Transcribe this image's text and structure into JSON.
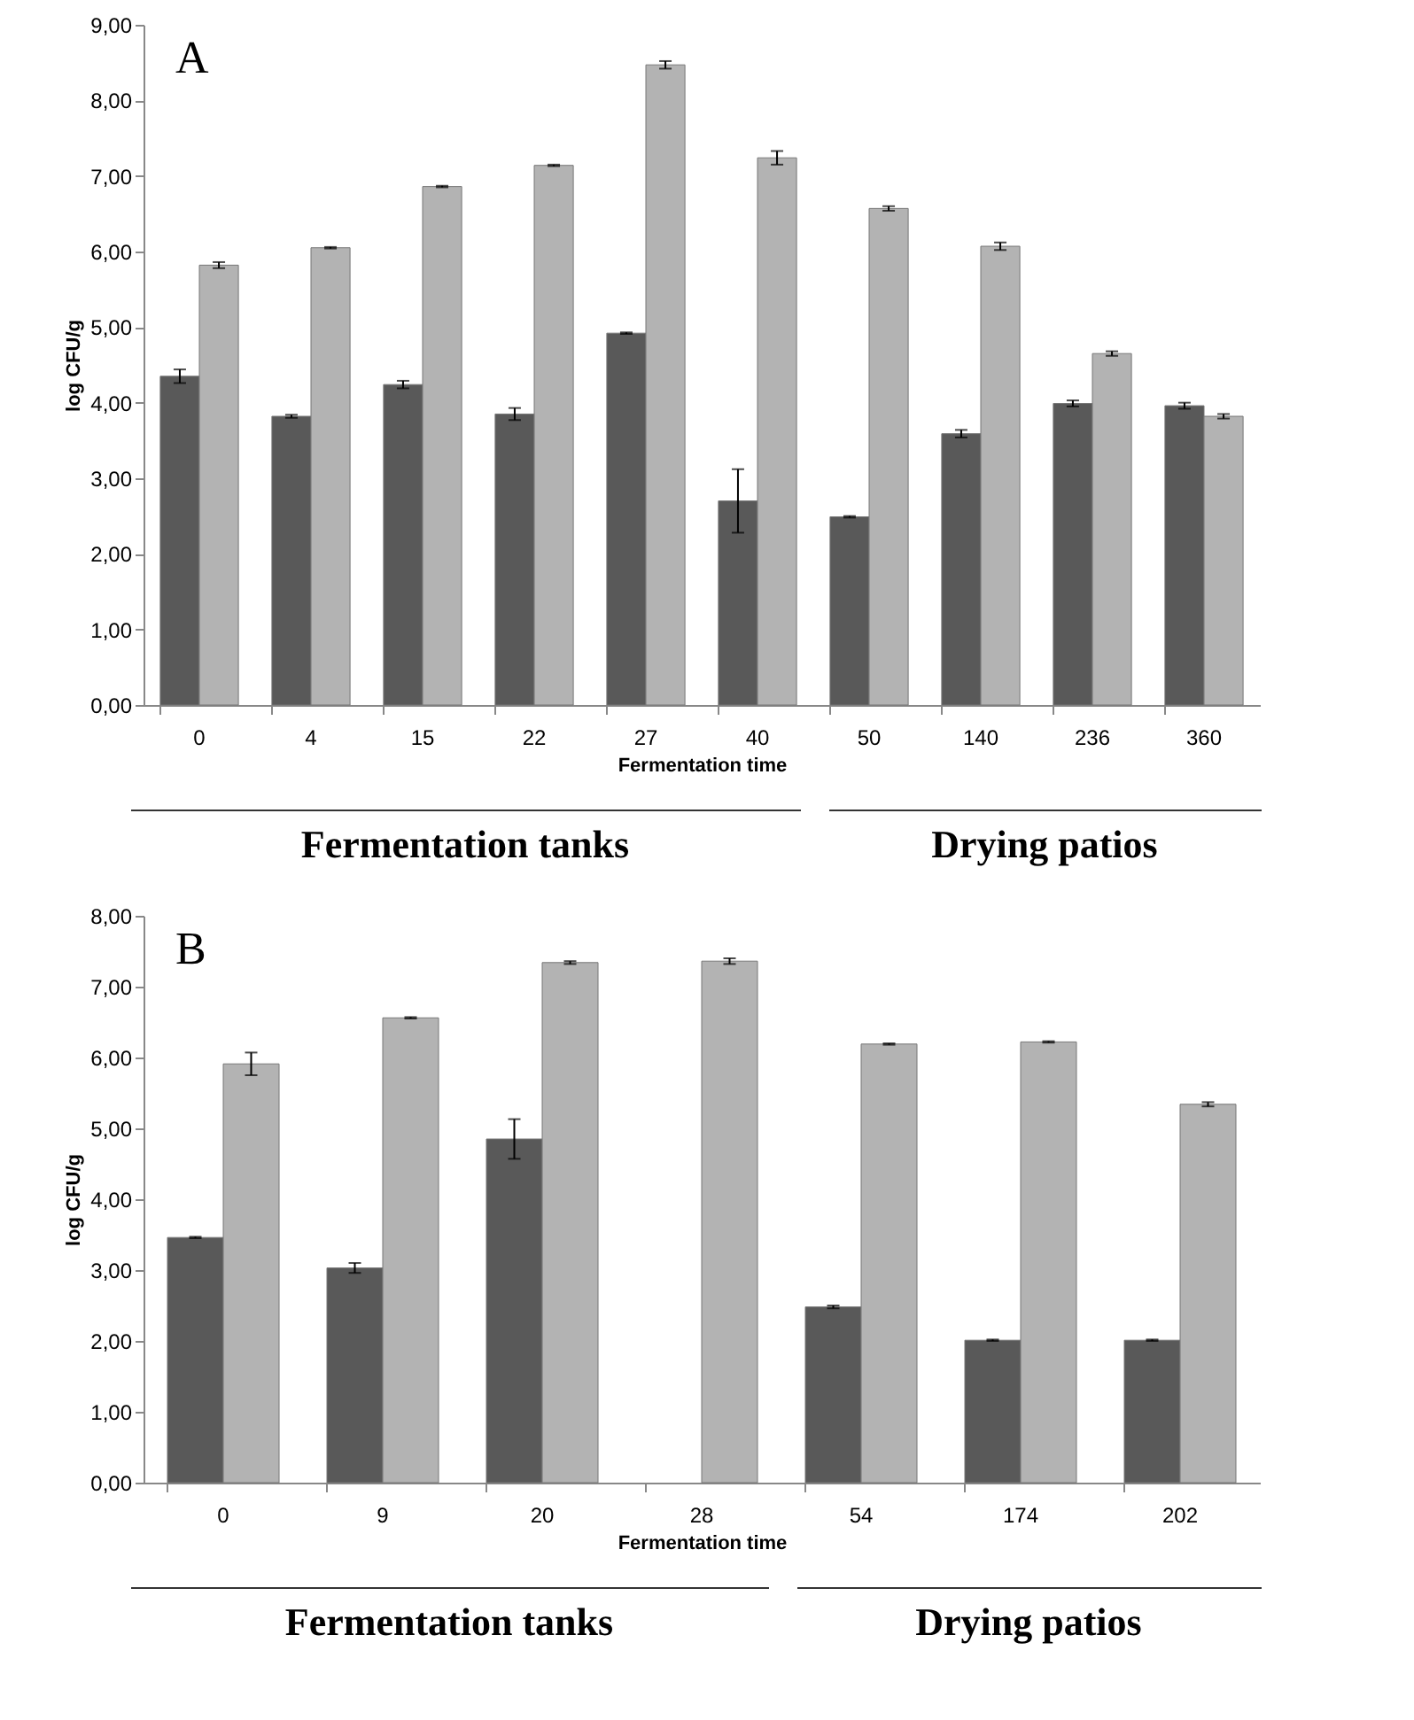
{
  "chart_data": [
    {
      "type": "bar",
      "xlabel": "Fermentation time",
      "ylabel": "log CFU/g",
      "categories": [
        "0",
        "4",
        "15",
        "22",
        "27",
        "40",
        "50",
        "140",
        "236",
        "360"
      ],
      "series": [
        {
          "color": "#595959",
          "values": [
            4.35,
            3.82,
            4.24,
            3.85,
            4.92,
            2.7,
            2.49,
            3.59,
            3.99,
            3.96
          ],
          "errors": [
            0.09,
            0.02,
            0.05,
            0.08,
            0.01,
            0.42,
            0.01,
            0.05,
            0.04,
            0.04
          ]
        },
        {
          "color": "#b3b3b3",
          "values": [
            5.82,
            6.05,
            6.86,
            7.14,
            8.47,
            7.24,
            6.57,
            6.07,
            4.65,
            3.82
          ],
          "errors": [
            0.04,
            0.01,
            0.01,
            0.01,
            0.05,
            0.09,
            0.03,
            0.05,
            0.03,
            0.03
          ]
        }
      ],
      "ylim": [
        0,
        9
      ],
      "yticks": [
        {
          "value": 0,
          "label": "0,00"
        },
        {
          "value": 1,
          "label": "1,00"
        },
        {
          "value": 2,
          "label": "2,00"
        },
        {
          "value": 3,
          "label": "3,00"
        },
        {
          "value": 4,
          "label": "4,00"
        },
        {
          "value": 5,
          "label": "5,00"
        },
        {
          "value": 6,
          "label": "6,00"
        },
        {
          "value": 7,
          "label": "7,00"
        },
        {
          "value": 8,
          "label": "8,00"
        },
        {
          "value": 9,
          "label": "9,00"
        }
      ],
      "grid": false,
      "legend": false,
      "annotations": [
        "A",
        "Fermentation tanks",
        "Drying patios"
      ]
    },
    {
      "type": "bar",
      "xlabel": "Fermentation time",
      "ylabel": "log CFU/g",
      "categories": [
        "0",
        "9",
        "20",
        "28",
        "54",
        "174",
        "202"
      ],
      "series": [
        {
          "color": "#595959",
          "values": [
            3.46,
            3.03,
            4.85,
            null,
            2.48,
            2.01,
            2.01
          ],
          "errors": [
            0.01,
            0.07,
            0.28,
            null,
            0.02,
            0.01,
            0.01
          ]
        },
        {
          "color": "#b3b3b3",
          "values": [
            5.91,
            6.56,
            7.34,
            7.36,
            6.19,
            6.22,
            5.34
          ],
          "errors": [
            0.16,
            0.01,
            0.02,
            0.04,
            0.01,
            0.01,
            0.03
          ]
        }
      ],
      "ylim": [
        0,
        8
      ],
      "yticks": [
        {
          "value": 0,
          "label": "0,00"
        },
        {
          "value": 1,
          "label": "1,00"
        },
        {
          "value": 2,
          "label": "2,00"
        },
        {
          "value": 3,
          "label": "3,00"
        },
        {
          "value": 4,
          "label": "4,00"
        },
        {
          "value": 5,
          "label": "5,00"
        },
        {
          "value": 6,
          "label": "6,00"
        },
        {
          "value": 7,
          "label": "7,00"
        },
        {
          "value": 8,
          "label": "8,00"
        }
      ],
      "grid": false,
      "legend": false,
      "annotations": [
        "B",
        "Fermentation tanks",
        "Drying patios"
      ]
    }
  ]
}
